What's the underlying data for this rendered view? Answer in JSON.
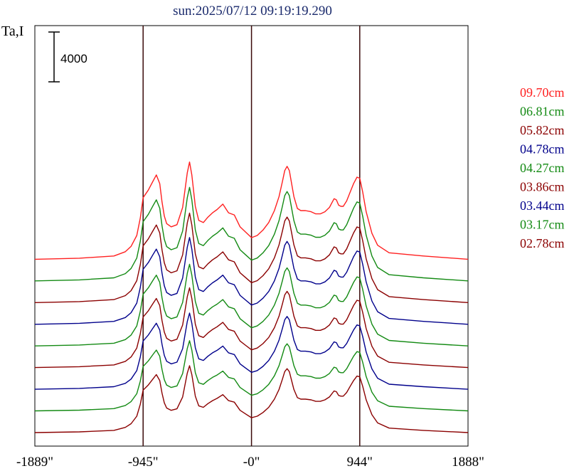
{
  "chart_data": {
    "type": "line",
    "title": "sun:2025/07/12 09:19:19.290",
    "ylabel": "Ta,I",
    "scale_bar_label": "4000",
    "x_unit": "arcsec",
    "xlim": [
      -1889,
      1888
    ],
    "x_tick_labels": [
      "-1889\"",
      "-945\"",
      "-0\"",
      "944\"",
      "1888\""
    ],
    "x_ticks": [
      -1889,
      -945,
      0,
      944,
      1888
    ],
    "vertical_lines": [
      -945,
      0,
      944
    ],
    "profile_shape": {
      "x": [
        -1889,
        -1500,
        -1200,
        -1100,
        -1050,
        -1000,
        -970,
        -945,
        -900,
        -860,
        -830,
        -800,
        -780,
        -760,
        -740,
        -700,
        -650,
        -600,
        -560,
        -540,
        -520,
        -490,
        -460,
        -420,
        -380,
        -340,
        -300,
        -250,
        -200,
        -150,
        -100,
        -50,
        0,
        50,
        100,
        150,
        200,
        240,
        270,
        290,
        310,
        330,
        350,
        370,
        400,
        430,
        470,
        520,
        560,
        600,
        640,
        680,
        700,
        720,
        740,
        760,
        780,
        800,
        830,
        860,
        890,
        920,
        944,
        970,
        1000,
        1050,
        1100,
        1200,
        1500,
        1888
      ],
      "y": [
        0.0,
        0.01,
        0.03,
        0.07,
        0.12,
        0.22,
        0.38,
        0.57,
        0.64,
        0.72,
        0.78,
        0.7,
        0.53,
        0.4,
        0.33,
        0.3,
        0.32,
        0.48,
        0.8,
        0.9,
        0.78,
        0.49,
        0.36,
        0.34,
        0.39,
        0.43,
        0.46,
        0.51,
        0.43,
        0.41,
        0.3,
        0.25,
        0.2,
        0.22,
        0.27,
        0.34,
        0.45,
        0.58,
        0.72,
        0.82,
        0.86,
        0.82,
        0.7,
        0.58,
        0.47,
        0.45,
        0.45,
        0.44,
        0.42,
        0.42,
        0.44,
        0.48,
        0.52,
        0.56,
        0.55,
        0.5,
        0.49,
        0.49,
        0.54,
        0.62,
        0.7,
        0.76,
        0.75,
        0.62,
        0.44,
        0.24,
        0.13,
        0.06,
        0.03,
        0.0
      ]
    },
    "ylim_relative": [
      0,
      1
    ],
    "series": [
      {
        "name": "09.70cm",
        "color": "#ff2020",
        "offset": 8,
        "amp": 8680
      },
      {
        "name": "06.81cm",
        "color": "#138a13",
        "offset": 7,
        "amp": 8350
      },
      {
        "name": "05.82cm",
        "color": "#8b0000",
        "offset": 6,
        "amp": 7990
      },
      {
        "name": "04.78cm",
        "color": "#00008b",
        "offset": 5,
        "amp": 7740
      },
      {
        "name": "04.27cm",
        "color": "#138a13",
        "offset": 4,
        "amp": 7290
      },
      {
        "name": "03.86cm",
        "color": "#8b0000",
        "offset": 3,
        "amp": 7120
      },
      {
        "name": "03.44cm",
        "color": "#00008b",
        "offset": 2,
        "amp": 6800
      },
      {
        "name": "03.17cm",
        "color": "#138a13",
        "offset": 1,
        "amp": 6270
      },
      {
        "name": "02.78cm",
        "color": "#8b0000",
        "offset": 0,
        "amp": 5970
      }
    ],
    "offset_step": 1740,
    "scale_bar_value": 4000
  }
}
